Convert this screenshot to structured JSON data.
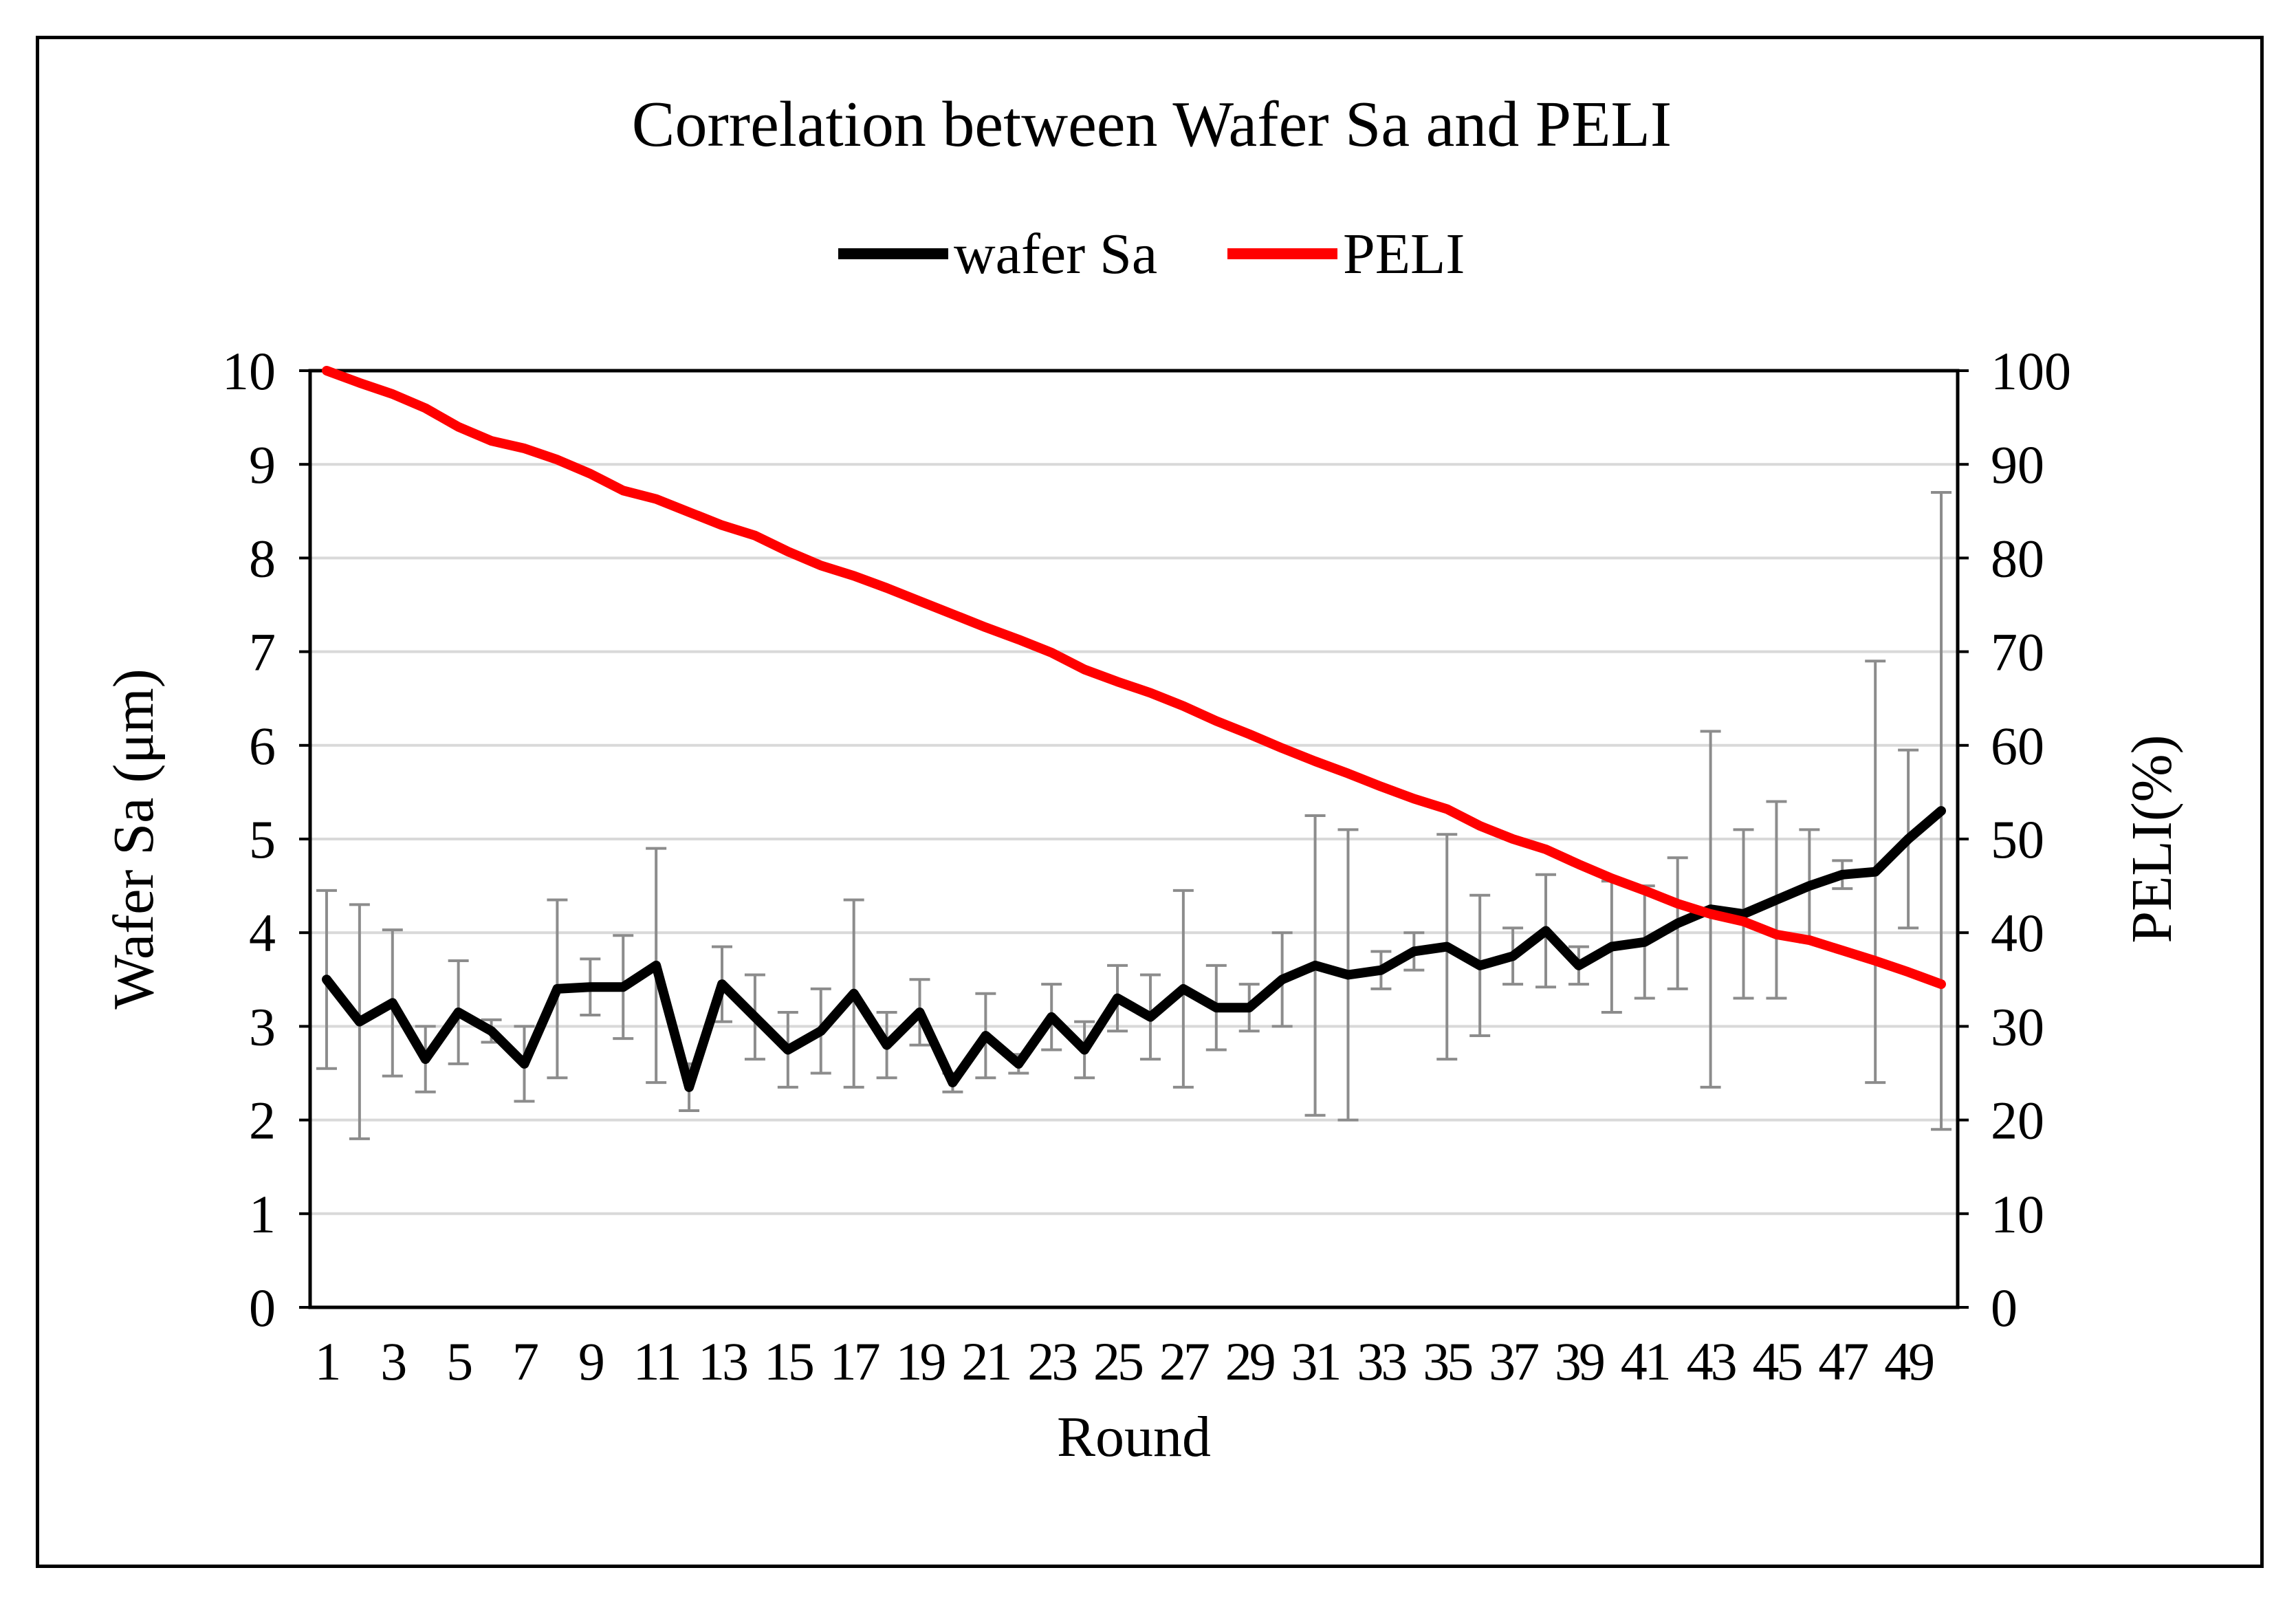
{
  "chart_data": {
    "type": "line",
    "title": "Correlation between Wafer Sa and PELI",
    "xlabel": "Round",
    "ylabel": "Wafer Sa (μm)",
    "y2label": "PELI(%)",
    "ylim": [
      0,
      10
    ],
    "y2lim": [
      0,
      100
    ],
    "yticks": [
      "0",
      "1",
      "2",
      "3",
      "4",
      "5",
      "6",
      "7",
      "8",
      "9",
      "10"
    ],
    "y2ticks": [
      "0",
      "10",
      "20",
      "30",
      "40",
      "50",
      "60",
      "70",
      "80",
      "90",
      "100"
    ],
    "x_tick_labels": [
      "1",
      "3",
      "5",
      "7",
      "9",
      "11",
      "13",
      "15",
      "17",
      "19",
      "21",
      "23",
      "25",
      "27",
      "29",
      "31",
      "33",
      "35",
      "37",
      "39",
      "41",
      "43",
      "45",
      "47",
      "49"
    ],
    "x": [
      1,
      2,
      3,
      4,
      5,
      6,
      7,
      8,
      9,
      10,
      11,
      12,
      13,
      14,
      15,
      16,
      17,
      18,
      19,
      20,
      21,
      22,
      23,
      24,
      25,
      26,
      27,
      28,
      29,
      30,
      31,
      32,
      33,
      34,
      35,
      36,
      37,
      38,
      39,
      40,
      41,
      42,
      43,
      44,
      45,
      46,
      47,
      48,
      49,
      50
    ],
    "grid": true,
    "legend_position": "top",
    "series": [
      {
        "name": "wafer Sa",
        "axis": "left",
        "color": "#000000",
        "values": [
          3.5,
          3.05,
          3.25,
          2.65,
          3.15,
          2.95,
          2.6,
          3.4,
          3.42,
          3.42,
          3.65,
          2.35,
          3.45,
          3.1,
          2.75,
          2.95,
          3.35,
          2.8,
          3.15,
          2.4,
          2.9,
          2.6,
          3.1,
          2.75,
          3.3,
          3.1,
          3.4,
          3.2,
          3.2,
          3.5,
          3.65,
          3.55,
          3.6,
          3.8,
          3.85,
          3.65,
          3.75,
          4.02,
          3.65,
          3.85,
          3.9,
          4.1,
          4.25,
          4.2,
          4.35,
          4.5,
          4.62,
          4.65,
          5.0,
          5.3
        ],
        "error": [
          0.95,
          1.25,
          0.78,
          0.35,
          0.55,
          0.12,
          0.4,
          0.95,
          0.3,
          0.55,
          1.25,
          0.25,
          0.4,
          0.45,
          0.4,
          0.45,
          1.0,
          0.35,
          0.35,
          0.1,
          0.45,
          0.1,
          0.35,
          0.3,
          0.35,
          0.45,
          1.05,
          0.45,
          0.25,
          0.5,
          1.6,
          1.55,
          0.2,
          0.2,
          1.2,
          0.75,
          0.3,
          0.6,
          0.2,
          0.7,
          0.6,
          0.7,
          1.9,
          0.9,
          1.05,
          0.6,
          0.15,
          2.25,
          0.95,
          3.4
        ]
      },
      {
        "name": "PELI",
        "axis": "right",
        "color": "#ff0000",
        "values": [
          100,
          98.7,
          97.5,
          96.0,
          94.0,
          92.5,
          91.7,
          90.5,
          89.0,
          87.2,
          86.3,
          84.9,
          83.5,
          82.4,
          80.7,
          79.2,
          78.1,
          76.8,
          75.4,
          74.0,
          72.6,
          71.3,
          69.9,
          68.1,
          66.8,
          65.6,
          64.2,
          62.6,
          61.2,
          59.7,
          58.3,
          57.0,
          55.6,
          54.3,
          53.2,
          51.4,
          50.0,
          48.9,
          47.3,
          45.8,
          44.5,
          43.1,
          42.0,
          41.2,
          39.8,
          39.2,
          38.1,
          37.0,
          35.8,
          34.5
        ]
      }
    ]
  }
}
